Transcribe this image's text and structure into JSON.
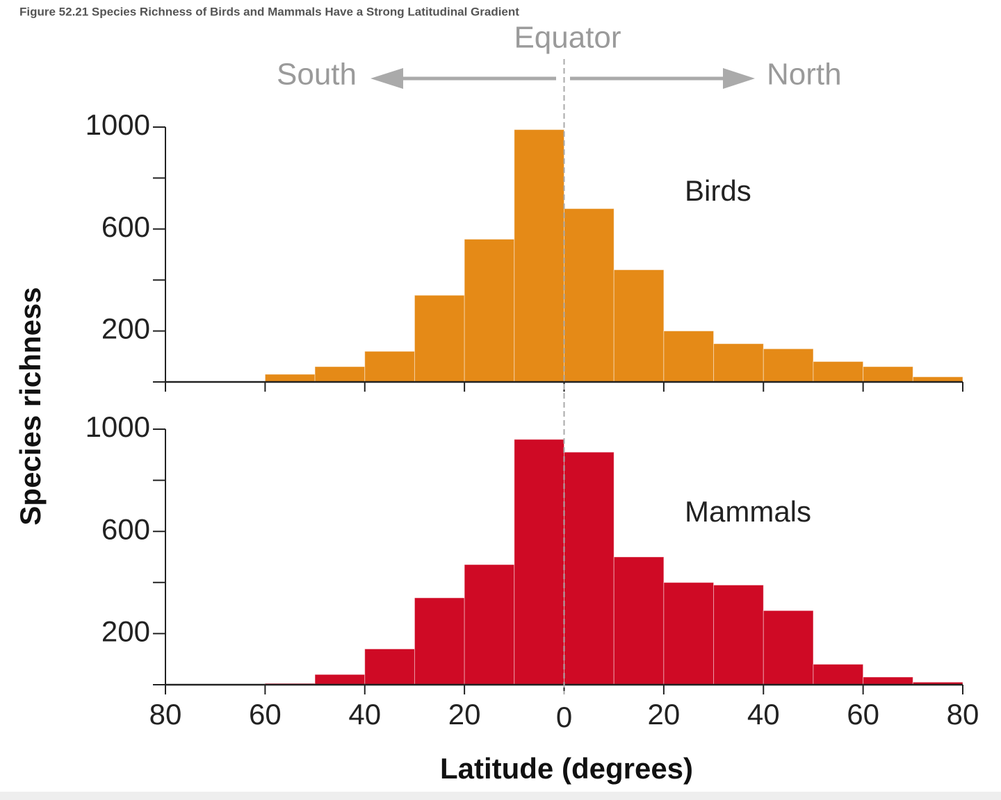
{
  "caption": "Figure 52.21 Species Richness of Birds and Mammals Have a Strong Latitudinal Gradient",
  "chart_data": [
    {
      "type": "histogram",
      "annotations": {
        "equator": "Equator",
        "south": "South",
        "north": "North"
      },
      "ylabel": "Species richness",
      "bins": [
        -60,
        -50,
        -40,
        -30,
        -20,
        -10,
        0,
        10,
        20,
        30,
        40,
        50,
        60,
        70,
        80
      ],
      "series": [
        {
          "name": "Birds",
          "color": "#e58a17",
          "values": [
            30,
            60,
            120,
            340,
            560,
            990,
            680,
            440,
            200,
            150,
            130,
            80,
            60,
            20
          ]
        }
      ],
      "xlim": [
        -80,
        80
      ],
      "ylim": [
        0,
        1000
      ],
      "yticks": [
        200,
        600,
        1000
      ],
      "yminorticks": [
        0,
        400,
        800
      ]
    },
    {
      "type": "histogram",
      "xlabel": "Latitude (degrees)",
      "bins": [
        -60,
        -50,
        -40,
        -30,
        -20,
        -10,
        0,
        10,
        20,
        30,
        40,
        50,
        60,
        70,
        80
      ],
      "series": [
        {
          "name": "Mammals",
          "color": "#cf0a25",
          "values": [
            5,
            40,
            140,
            340,
            470,
            960,
            910,
            500,
            400,
            390,
            290,
            80,
            30,
            10
          ]
        }
      ],
      "xlim": [
        -80,
        80
      ],
      "ylim": [
        0,
        1000
      ],
      "yticks": [
        200,
        600,
        1000
      ],
      "yminorticks": [
        0,
        400,
        800
      ],
      "xticks": [
        {
          "value": -80,
          "label": "80"
        },
        {
          "value": -60,
          "label": "60"
        },
        {
          "value": -40,
          "label": "40"
        },
        {
          "value": -20,
          "label": "20"
        },
        0,
        20,
        40,
        60,
        80
      ]
    }
  ]
}
